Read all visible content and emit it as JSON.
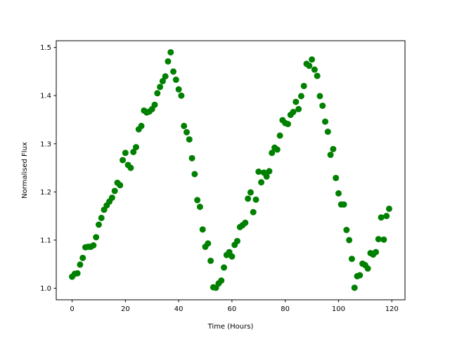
{
  "chart_data": {
    "type": "scatter",
    "title": "",
    "xlabel": "Time (Hours)",
    "ylabel": "Normalised Flux",
    "xlim": [
      -5.95,
      124.95
    ],
    "ylim": [
      0.976,
      1.514
    ],
    "xticks": [
      0,
      20,
      40,
      60,
      80,
      100,
      120
    ],
    "yticks": [
      1.0,
      1.1,
      1.2,
      1.3,
      1.4,
      1.5
    ],
    "xtick_labels": [
      "0",
      "20",
      "40",
      "60",
      "80",
      "100",
      "120"
    ],
    "ytick_labels": [
      "1.0",
      "1.1",
      "1.2",
      "1.3",
      "1.4",
      "1.5"
    ],
    "grid": false,
    "marker_color": "#008000",
    "series": [
      {
        "x": [
          0,
          1,
          2,
          3,
          4,
          5,
          6,
          7,
          8,
          9,
          10,
          11,
          12,
          13,
          14,
          15,
          16,
          17,
          18,
          19,
          20,
          21,
          22,
          23,
          24,
          25,
          26,
          27,
          28,
          29,
          30,
          31,
          32,
          33,
          34,
          35,
          36,
          37,
          38,
          39,
          40,
          41,
          42,
          43,
          44,
          45,
          46,
          47,
          48,
          49,
          50,
          51,
          52,
          53,
          54,
          55,
          56,
          57,
          58,
          59,
          60,
          61,
          62,
          63,
          64,
          65,
          66,
          67,
          68,
          69,
          70,
          71,
          72,
          73,
          74,
          75,
          76,
          77,
          78,
          79,
          80,
          81,
          82,
          83,
          84,
          85,
          86,
          87,
          88,
          89,
          90,
          91,
          92,
          93,
          94,
          95,
          96,
          97,
          98,
          99,
          100,
          101,
          102,
          103,
          104,
          105,
          106,
          107,
          108,
          109,
          110,
          111,
          112,
          113,
          114,
          115,
          116,
          117,
          118,
          119
        ],
        "y": [
          1.024,
          1.03,
          1.031,
          1.049,
          1.063,
          1.085,
          1.086,
          1.086,
          1.089,
          1.106,
          1.132,
          1.146,
          1.163,
          1.172,
          1.18,
          1.188,
          1.202,
          1.219,
          1.214,
          1.266,
          1.281,
          1.256,
          1.25,
          1.283,
          1.293,
          1.33,
          1.337,
          1.369,
          1.365,
          1.367,
          1.372,
          1.381,
          1.405,
          1.418,
          1.43,
          1.44,
          1.471,
          1.49,
          1.45,
          1.433,
          1.413,
          1.4,
          1.337,
          1.324,
          1.309,
          1.27,
          1.237,
          1.183,
          1.169,
          1.122,
          1.086,
          1.093,
          1.057,
          1.002,
          1.001,
          1.01,
          1.016,
          1.043,
          1.069,
          1.075,
          1.066,
          1.09,
          1.098,
          1.127,
          1.131,
          1.136,
          1.186,
          1.199,
          1.158,
          1.184,
          1.242,
          1.22,
          1.24,
          1.232,
          1.243,
          1.281,
          1.292,
          1.288,
          1.317,
          1.349,
          1.343,
          1.341,
          1.36,
          1.366,
          1.387,
          1.372,
          1.399,
          1.42,
          1.466,
          1.462,
          1.475,
          1.454,
          1.441,
          1.399,
          1.379,
          1.346,
          1.325,
          1.277,
          1.289,
          1.229,
          1.197,
          1.174,
          1.174,
          1.121,
          1.1,
          1.061,
          1.001,
          1.025,
          1.027,
          1.051,
          1.048,
          1.041,
          1.073,
          1.07,
          1.075,
          1.102,
          1.147,
          1.101,
          1.15,
          1.165
        ]
      }
    ]
  }
}
